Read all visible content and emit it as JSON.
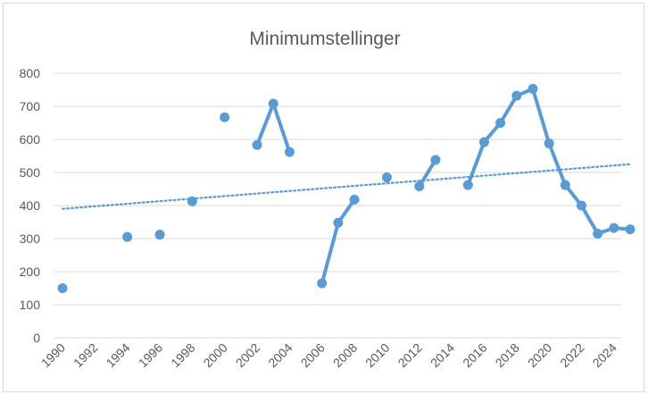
{
  "chart_data": {
    "type": "line",
    "title": "Minimumstellinger",
    "xlabel": "",
    "ylabel": "",
    "xlim": [
      1990,
      2025
    ],
    "ylim": [
      0,
      800
    ],
    "y_ticks": [
      0,
      100,
      200,
      300,
      400,
      500,
      600,
      700,
      800
    ],
    "x_ticks": [
      1990,
      1992,
      1994,
      1996,
      1998,
      2000,
      2002,
      2004,
      2006,
      2008,
      2010,
      2012,
      2014,
      2016,
      2018,
      2020,
      2022,
      2024
    ],
    "grid": "horizontal",
    "legend": "none",
    "colors": {
      "series": "#5b9bd5",
      "trendline": "#5b9bd5"
    },
    "series": [
      {
        "x": [
          1990,
          1994,
          1996,
          1998,
          2000,
          2002,
          2003,
          2004,
          2006,
          2007,
          2008,
          2010,
          2012,
          2013,
          2015,
          2016,
          2017,
          2018,
          2019,
          2020,
          2021,
          2022,
          2023,
          2024,
          2025
        ],
        "values": [
          150,
          305,
          312,
          413,
          667,
          583,
          708,
          562,
          165,
          348,
          418,
          485,
          458,
          538,
          462,
          592,
          650,
          732,
          753,
          588,
          462,
          400,
          315,
          332,
          328
        ]
      }
    ],
    "trendline": {
      "type": "linear",
      "style": "dotted",
      "y_start": 390,
      "y_end": 525
    }
  }
}
